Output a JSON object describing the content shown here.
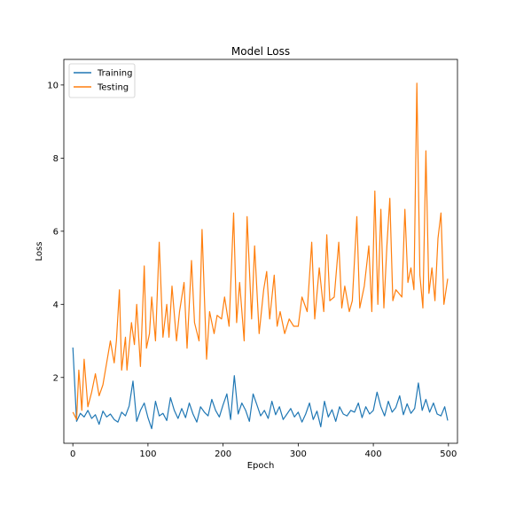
{
  "chart_data": {
    "type": "line",
    "title": "Model Loss",
    "xlabel": "Epoch",
    "ylabel": "Loss",
    "xlim": [
      -12,
      512
    ],
    "ylim": [
      0.2,
      10.7
    ],
    "xticks": [
      0,
      100,
      200,
      300,
      400,
      500
    ],
    "yticks": [
      2,
      4,
      6,
      8,
      10
    ],
    "grid": false,
    "legend_position": "upper-left",
    "series": [
      {
        "name": "Training",
        "color": "#1f77b4",
        "x": [
          0,
          5,
          10,
          15,
          20,
          25,
          30,
          35,
          40,
          45,
          50,
          55,
          60,
          65,
          70,
          75,
          80,
          85,
          90,
          95,
          100,
          105,
          110,
          115,
          120,
          125,
          130,
          135,
          140,
          145,
          150,
          155,
          160,
          165,
          170,
          175,
          180,
          185,
          190,
          195,
          200,
          205,
          210,
          215,
          220,
          225,
          230,
          235,
          240,
          245,
          250,
          255,
          260,
          265,
          270,
          275,
          280,
          285,
          290,
          295,
          300,
          305,
          310,
          315,
          320,
          325,
          330,
          335,
          340,
          345,
          350,
          355,
          360,
          365,
          370,
          375,
          380,
          385,
          390,
          395,
          400,
          405,
          410,
          415,
          420,
          425,
          430,
          435,
          440,
          445,
          450,
          455,
          460,
          465,
          470,
          475,
          480,
          485,
          490,
          495,
          499
        ],
        "values": [
          2.82,
          0.8,
          1.02,
          0.92,
          1.1,
          0.88,
          0.98,
          0.72,
          1.08,
          0.92,
          1.0,
          0.85,
          0.78,
          1.05,
          0.95,
          1.22,
          1.9,
          0.8,
          1.1,
          1.3,
          0.9,
          0.6,
          1.35,
          0.95,
          1.02,
          0.82,
          1.45,
          1.1,
          0.88,
          1.15,
          0.9,
          1.3,
          1.0,
          0.78,
          1.2,
          1.05,
          0.95,
          1.4,
          1.1,
          0.92,
          1.25,
          1.55,
          0.85,
          2.05,
          1.0,
          1.3,
          1.1,
          0.8,
          1.55,
          1.25,
          0.95,
          1.1,
          0.88,
          1.35,
          0.98,
          1.2,
          0.85,
          1.0,
          1.15,
          0.92,
          1.05,
          0.78,
          1.0,
          1.3,
          0.85,
          1.08,
          0.65,
          1.35,
          0.92,
          1.12,
          0.8,
          1.2,
          1.0,
          0.95,
          1.1,
          1.05,
          1.3,
          0.9,
          1.2,
          1.0,
          1.1,
          1.6,
          1.2,
          0.95,
          1.35,
          1.05,
          1.18,
          1.5,
          0.98,
          1.28,
          1.02,
          1.15,
          1.85,
          1.1,
          1.4,
          1.05,
          1.3,
          1.0,
          0.95,
          1.2,
          0.82
        ]
      },
      {
        "name": "Testing",
        "color": "#ff7f0e",
        "x": [
          0,
          5,
          8,
          12,
          15,
          20,
          25,
          30,
          35,
          40,
          45,
          50,
          55,
          58,
          62,
          65,
          70,
          72,
          78,
          82,
          85,
          90,
          95,
          98,
          102,
          105,
          110,
          115,
          120,
          125,
          128,
          132,
          138,
          142,
          148,
          152,
          158,
          162,
          168,
          172,
          178,
          182,
          188,
          192,
          198,
          202,
          208,
          214,
          218,
          222,
          228,
          232,
          238,
          242,
          248,
          254,
          258,
          262,
          268,
          272,
          276,
          282,
          288,
          294,
          300,
          305,
          312,
          318,
          322,
          328,
          334,
          338,
          342,
          348,
          354,
          358,
          362,
          368,
          372,
          378,
          382,
          388,
          394,
          398,
          402,
          406,
          410,
          414,
          418,
          422,
          426,
          430,
          434,
          438,
          442,
          446,
          450,
          454,
          458,
          462,
          466,
          470,
          474,
          478,
          482,
          486,
          490,
          494,
          499
        ],
        "values": [
          1.05,
          0.85,
          2.2,
          1.1,
          2.5,
          1.2,
          1.6,
          2.1,
          1.5,
          1.8,
          2.4,
          3.0,
          2.4,
          3.0,
          4.4,
          2.2,
          3.1,
          2.2,
          3.5,
          2.9,
          4.0,
          2.3,
          5.05,
          2.8,
          3.2,
          4.2,
          3.0,
          5.7,
          3.1,
          4.0,
          3.1,
          4.5,
          3.0,
          3.8,
          4.6,
          2.8,
          5.2,
          3.5,
          3.0,
          6.05,
          2.5,
          3.8,
          3.2,
          3.7,
          3.6,
          4.2,
          3.4,
          6.5,
          3.5,
          4.6,
          3.0,
          6.4,
          3.6,
          5.6,
          3.2,
          4.4,
          4.9,
          3.6,
          4.8,
          3.4,
          3.8,
          3.2,
          3.6,
          3.4,
          3.4,
          4.2,
          3.8,
          5.7,
          3.6,
          5.0,
          3.8,
          5.9,
          4.1,
          4.2,
          5.7,
          3.9,
          4.5,
          3.8,
          4.1,
          6.4,
          3.9,
          4.5,
          5.6,
          3.8,
          7.1,
          4.0,
          6.6,
          3.9,
          5.6,
          6.9,
          4.1,
          4.4,
          4.3,
          4.2,
          6.6,
          4.6,
          5.0,
          4.4,
          10.05,
          4.8,
          3.9,
          8.2,
          4.3,
          5.0,
          4.1,
          5.8,
          6.5,
          4.0,
          4.7
        ]
      }
    ]
  }
}
